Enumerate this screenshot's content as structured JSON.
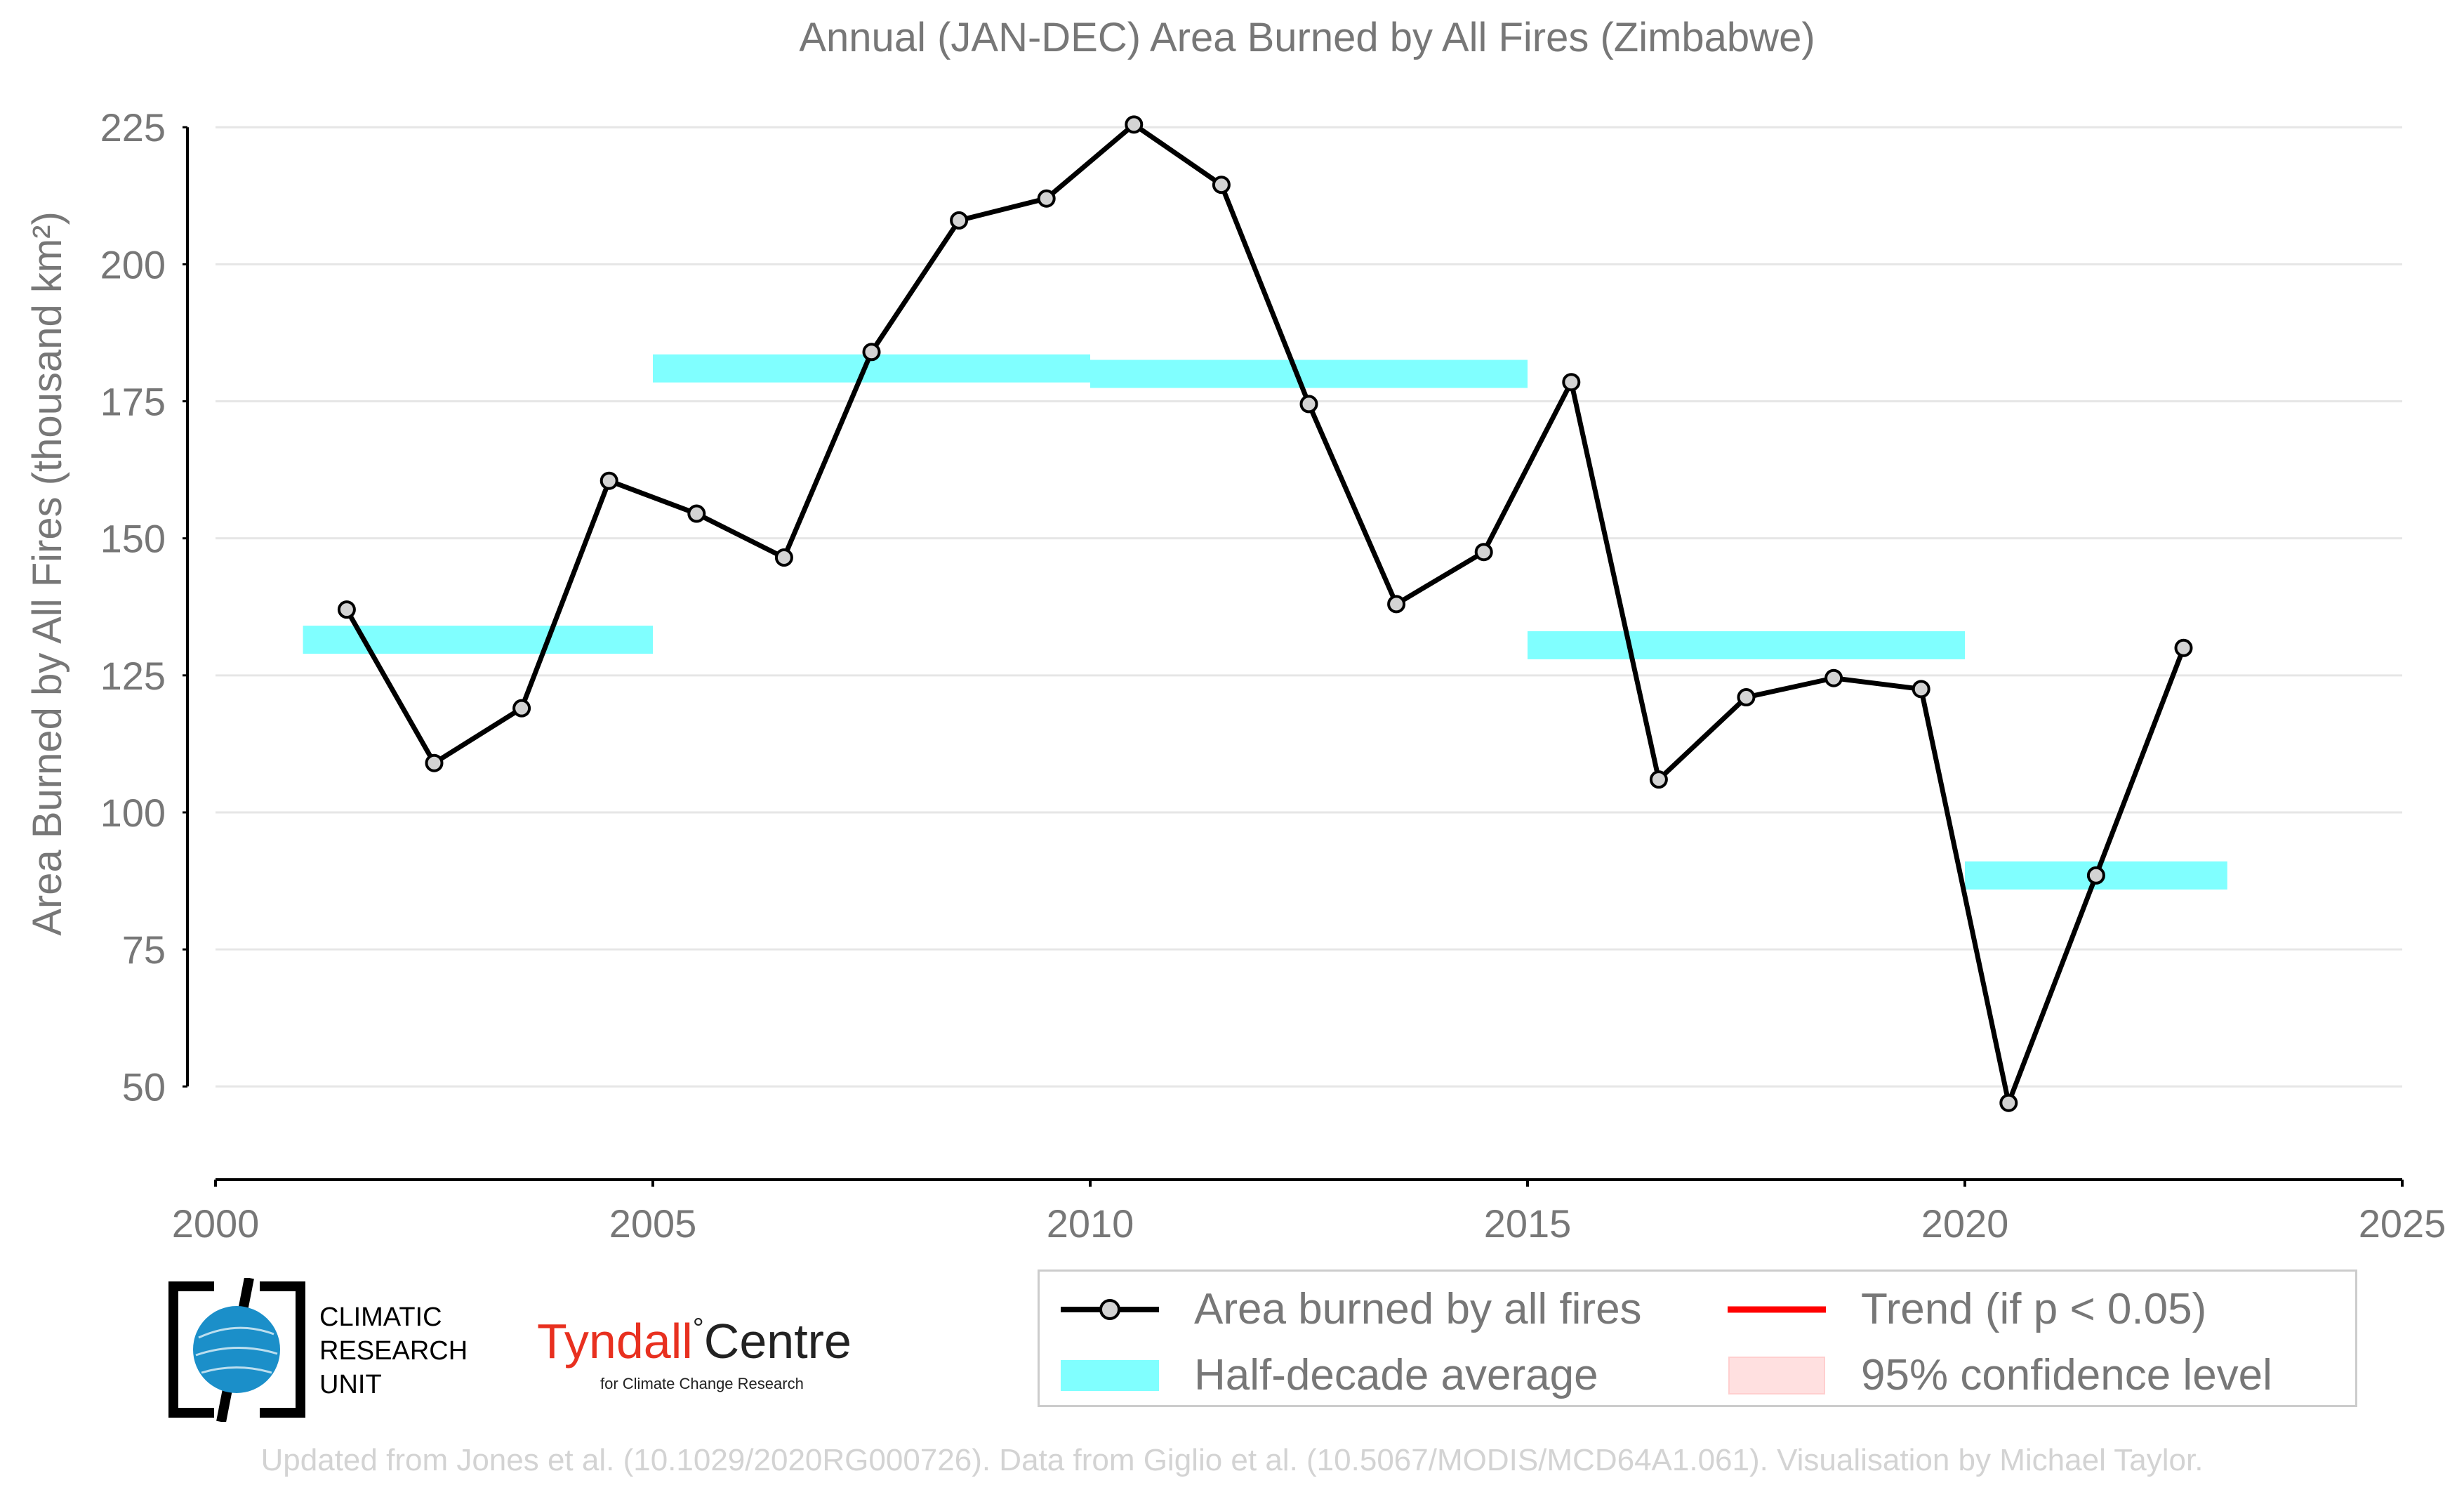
{
  "chart_data": {
    "type": "line",
    "title": "Annual (JAN-DEC) Area Burned by All Fires (Zimbabwe)",
    "ylabel": "Area Burned by All Fires (thousand km²)",
    "xlabel": "",
    "xlim": [
      2000,
      2025
    ],
    "ylim": [
      33,
      229
    ],
    "xticks": [
      2000,
      2005,
      2010,
      2015,
      2020,
      2025
    ],
    "yticks": [
      50,
      75,
      100,
      125,
      150,
      175,
      200,
      225
    ],
    "grid": "horizontal",
    "legend_position": "bottom-right",
    "series": [
      {
        "name": "Area burned by all fires",
        "type": "line",
        "color": "#000000",
        "marker_color": "#d3d3d3",
        "x": [
          2001.5,
          2002.5,
          2003.5,
          2004.5,
          2005.5,
          2006.5,
          2007.5,
          2008.5,
          2009.5,
          2010.5,
          2011.5,
          2012.5,
          2013.5,
          2014.5,
          2015.5,
          2016.5,
          2017.5,
          2018.5,
          2019.5,
          2020.5,
          2021.5,
          2022.5
        ],
        "y": [
          137,
          109,
          119,
          160.5,
          154.5,
          146.5,
          184,
          208,
          212,
          225.5,
          214.5,
          174.5,
          138,
          147.5,
          178.5,
          106,
          121,
          124.5,
          122.5,
          47,
          88.5,
          130
        ]
      },
      {
        "name": "Half-decade average",
        "type": "segments",
        "color": "#80ffff",
        "segments": [
          {
            "x0": 2001,
            "x1": 2005,
            "y": 131.5
          },
          {
            "x0": 2005,
            "x1": 2010,
            "y": 181
          },
          {
            "x0": 2010,
            "x1": 2015,
            "y": 180
          },
          {
            "x0": 2015,
            "x1": 2020,
            "y": 130.5
          },
          {
            "x0": 2020,
            "x1": 2023,
            "y": 88.5
          }
        ]
      }
    ]
  },
  "legend": {
    "items": [
      {
        "label": "Area burned by all fires",
        "color": "#000000"
      },
      {
        "label": "Half-decade average",
        "color": "#80ffff"
      },
      {
        "label": "Trend (if p < 0.05)",
        "color": "#ff0000"
      },
      {
        "label": "95% confidence level",
        "color": "#ffe0e0"
      }
    ]
  },
  "logos": {
    "cru_line1": "CLIMATIC",
    "cru_line2": "RESEARCH",
    "cru_line3": "UNIT",
    "cru_color": "#1b8fc9",
    "tyndall_name": "Tyndall",
    "tyndall_sup": "°",
    "tyndall_centre": "Centre",
    "tyndall_sub": "for Climate Change Research"
  },
  "footer": "Updated from Jones et al. (10.1029/2020RG000726). Data from Giglio et al. (10.5067/MODIS/MCD64A1.061). Visualisation by Michael Taylor."
}
